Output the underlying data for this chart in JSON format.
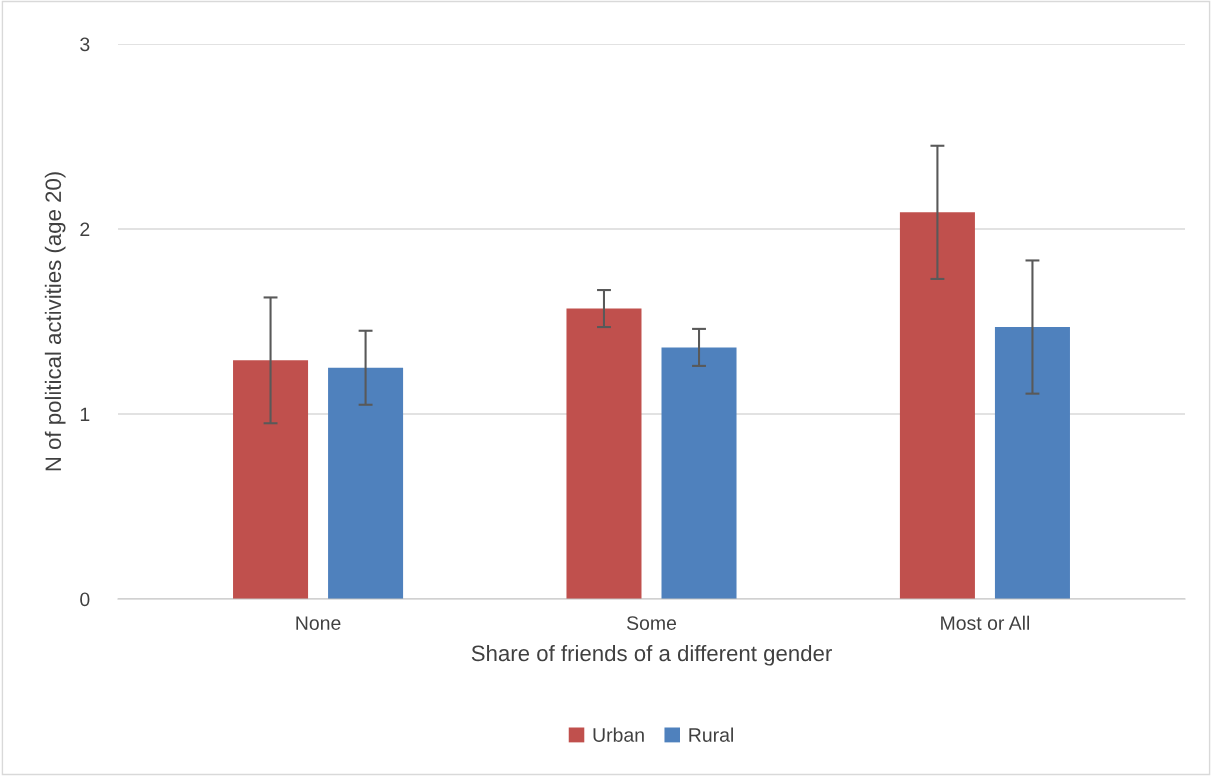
{
  "chart_data": {
    "type": "bar",
    "xlabel": "Share of friends of a different gender",
    "ylabel": "N of political activities (age 20)",
    "categories": [
      "None",
      "Some",
      "Most or All"
    ],
    "series": [
      {
        "name": "Urban",
        "color": "#c0504d",
        "values": [
          1.29,
          1.57,
          2.09
        ],
        "errors": [
          0.34,
          0.1,
          0.36
        ]
      },
      {
        "name": "Rural",
        "color": "#4f81bd",
        "values": [
          1.25,
          1.36,
          1.47
        ],
        "errors": [
          0.2,
          0.1,
          0.36
        ]
      }
    ],
    "ylim": [
      0,
      3
    ],
    "yticks": [
      0,
      1,
      2,
      3
    ],
    "grid": "y",
    "legend": "bottom"
  }
}
